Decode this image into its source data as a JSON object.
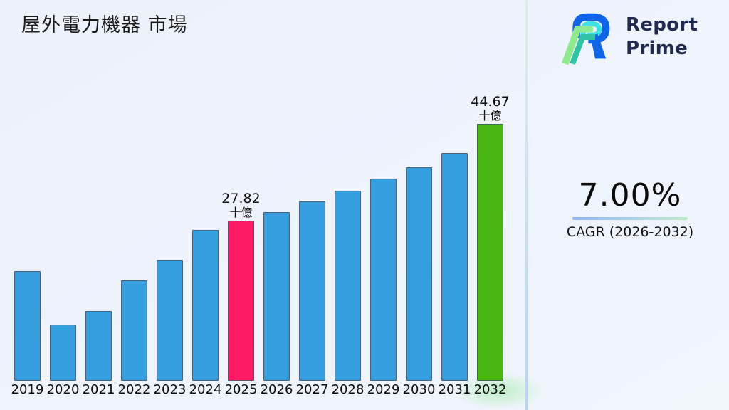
{
  "title": "屋外電力機器 市場",
  "logo": {
    "line1": "Report",
    "line2": "Prime",
    "text_color": "#1F2A4E",
    "mark_colors": {
      "blue": "#1064E8",
      "cyan": "#41E1E8",
      "teal": "#2FC3A4",
      "green": "#8FE98F"
    }
  },
  "stat": {
    "value": "7.00%",
    "caption": "CAGR (2026-2032)"
  },
  "colors": {
    "background": "#EEF3FC",
    "bar_default": "#349EE0",
    "bar_highlight_2025": "#FB1A63",
    "bar_highlight_2032": "#4AB612",
    "divider_top": "#D9F0DE",
    "divider_bottom": "#BAD3F1",
    "label_text": "#0d0d0d"
  },
  "chart_data": {
    "type": "bar",
    "title": "屋外電力機器 市場",
    "xlabel": "",
    "ylabel": "",
    "unit": "十億",
    "ylim": [
      0,
      47
    ],
    "grid": false,
    "legend": "none",
    "categories": [
      "2019",
      "2020",
      "2021",
      "2022",
      "2023",
      "2024",
      "2025",
      "2026",
      "2027",
      "2028",
      "2029",
      "2030",
      "2031",
      "2032"
    ],
    "values": [
      19.1,
      9.8,
      12.1,
      17.4,
      21.0,
      26.2,
      27.82,
      29.3,
      31.2,
      33.0,
      35.2,
      37.1,
      39.6,
      44.67
    ],
    "highlight_colors": {
      "2025": "#FB1A63",
      "2032": "#4AB612"
    },
    "data_labels": [
      {
        "category": "2025",
        "lines": [
          "27.82",
          "十億"
        ]
      },
      {
        "category": "2032",
        "lines": [
          "44.67",
          "十億"
        ]
      }
    ]
  }
}
